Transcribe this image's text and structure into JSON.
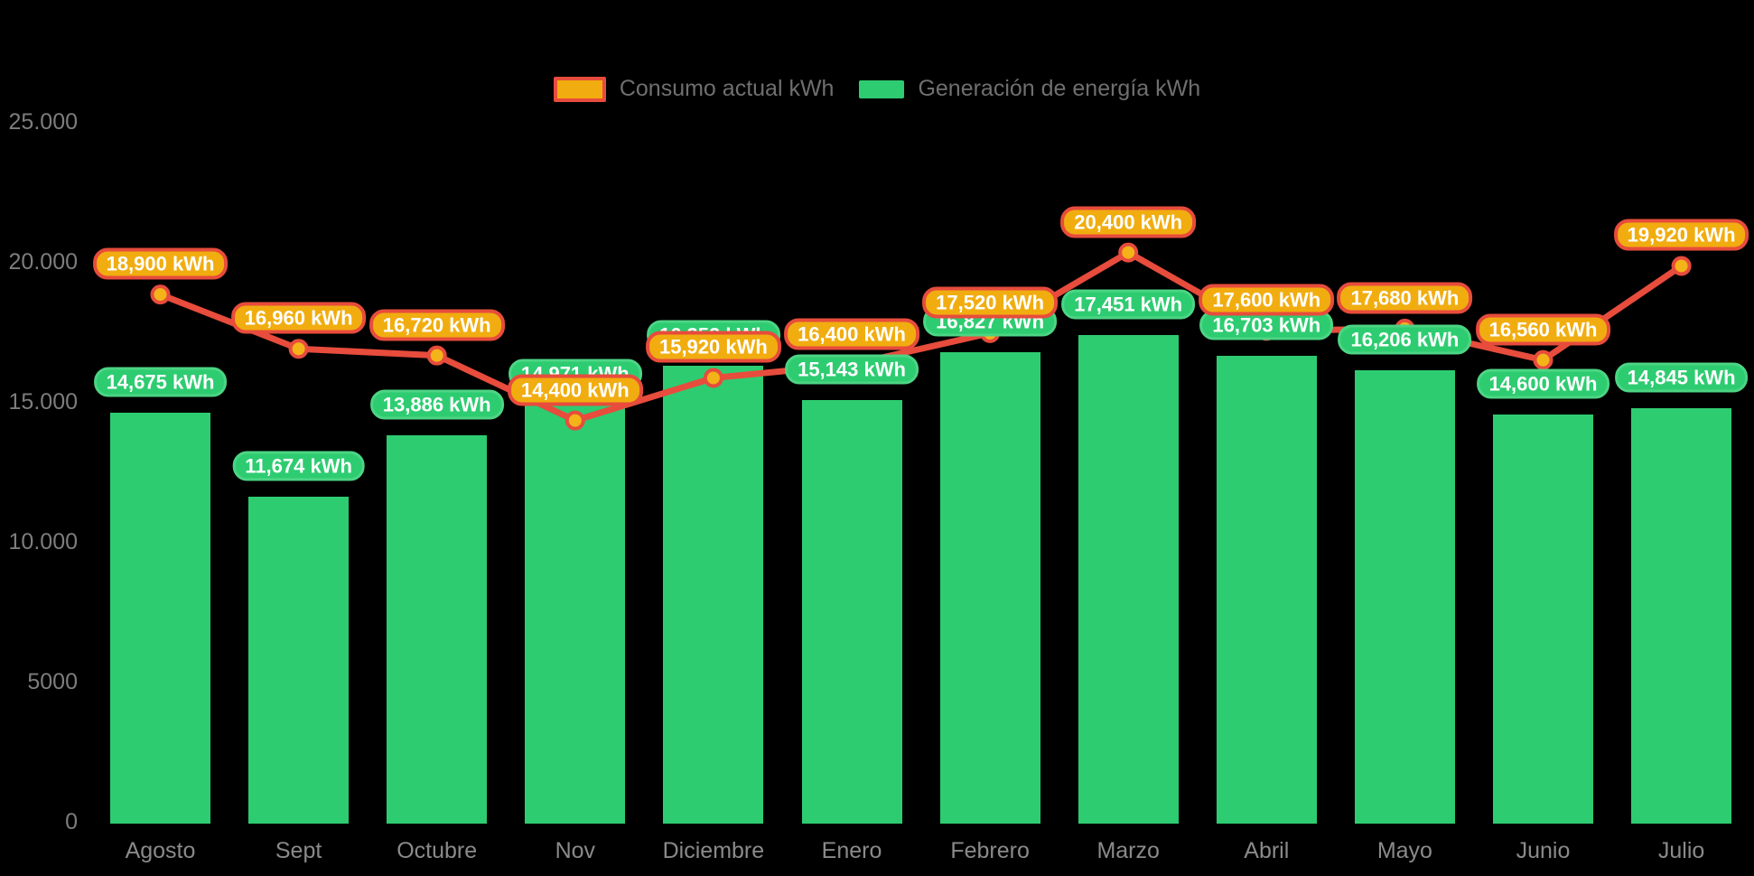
{
  "chart_data": {
    "type": "bar",
    "subtype": "bar-line-combo",
    "title": "",
    "categories": [
      "Agosto",
      "Sept",
      "Octubre",
      "Nov",
      "Diciembre",
      "Enero",
      "Febrero",
      "Marzo",
      "Abril",
      "Mayo",
      "Junio",
      "Julio"
    ],
    "series": [
      {
        "name": "Consumo actual kWh",
        "type": "line",
        "color": "#e74c3c",
        "marker_fill": "#f5b31a",
        "values": [
          18900,
          16960,
          16720,
          14400,
          15920,
          16400,
          17520,
          20400,
          17600,
          17680,
          16560,
          19920
        ],
        "labels": [
          "18,900 kWh",
          "16,960 kWh",
          "16,720 kWh",
          "14,400 kWh",
          "15,920 kWh",
          "16,400 kWh",
          "17,520 kWh",
          "20,400 kWh",
          "17,600 kWh",
          "17,680 kWh",
          "16,560 kWh",
          "19,920 kWh"
        ]
      },
      {
        "name": "Generación de energía kWh",
        "type": "bar",
        "color": "#2ecc71",
        "values": [
          14675,
          11674,
          13886,
          14971,
          16352,
          15143,
          16827,
          17451,
          16703,
          16206,
          14600,
          14845
        ],
        "labels": [
          "14,675 kWh",
          "11,674 kWh",
          "13,886 kWh",
          "14,971 kWh",
          "16,352 kWh",
          "15,143 kWh",
          "16,827 kWh",
          "17,451 kWh",
          "16,703 kWh",
          "16,206 kWh",
          "14,600 kWh",
          "14,845 kWh"
        ]
      }
    ],
    "y_axis": {
      "min": 0,
      "max": 25000,
      "tick_values": [
        0,
        5000,
        10000,
        15000,
        20000,
        25000
      ],
      "tick_labels": [
        "0",
        "5000",
        "10.000",
        "15.000",
        "20.000",
        "25.000"
      ]
    },
    "legend_position": "top-center",
    "grid": false,
    "background": "#000000"
  },
  "colors": {
    "bar_green": "#2ecc71",
    "green_pill_border": "#4cd584",
    "line_red": "#e74c3c",
    "marker_gold": "#f5b31a",
    "orange_pill_fill": "#f1ad10",
    "axis_text": "#7d7d7d",
    "legend_text": "#6f6f6f",
    "background": "#000000"
  }
}
